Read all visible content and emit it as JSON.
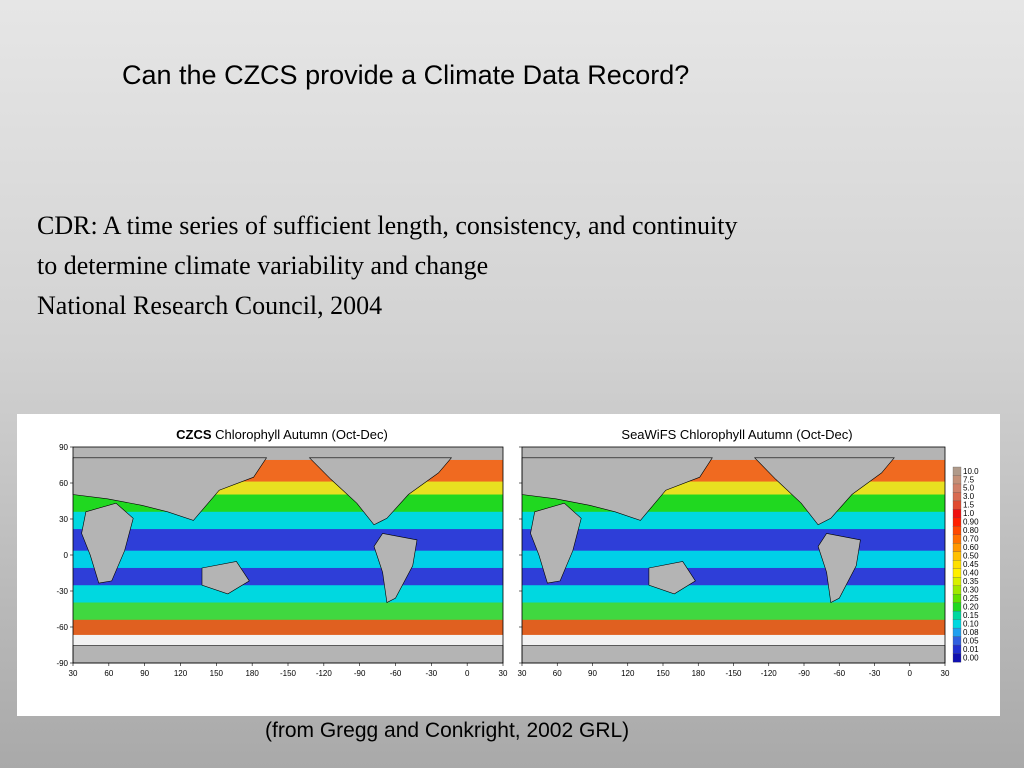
{
  "slide": {
    "title": "Can the CZCS provide a Climate Data Record?",
    "definition_lines": [
      "CDR:  A time series of sufficient length, consistency, and continuity",
      "to determine climate variability and change",
      "National Research Council, 2004"
    ],
    "caption": "(from Gregg and Conkright, 2002 GRL)"
  },
  "figure": {
    "left_map": {
      "title_bold": "CZCS",
      "title_rest": " Chlorophyll Autumn (Oct-Dec)"
    },
    "right_map": {
      "title": "SeaWiFS Chlorophyll Autumn (Oct-Dec)"
    },
    "lat_ticks": [
      "90",
      "60",
      "30",
      "0",
      "-30",
      "-60",
      "-90"
    ],
    "lon_ticks": [
      "30",
      "60",
      "90",
      "120",
      "150",
      "180",
      "-150",
      "-120",
      "-90",
      "-60",
      "-30",
      "0",
      "30"
    ],
    "colorbar_labels": [
      "10.0",
      "7.5",
      "5.0",
      "3.0",
      "1.5",
      "1.0",
      "0.90",
      "0.80",
      "0.70",
      "0.60",
      "0.50",
      "0.45",
      "0.40",
      "0.35",
      "0.30",
      "0.25",
      "0.20",
      "0.15",
      "0.10",
      "0.08",
      "0.05",
      "0.01",
      "0.00"
    ],
    "colorbar_colors": [
      "#b09a8a",
      "#c49078",
      "#d08068",
      "#d86a50",
      "#e04a30",
      "#f01010",
      "#ff2000",
      "#ff4800",
      "#ff7000",
      "#ff9800",
      "#ffc000",
      "#ffe000",
      "#fff000",
      "#d8f000",
      "#a0e800",
      "#60e000",
      "#20d820",
      "#00d8a0",
      "#00d8e0",
      "#20a0f0",
      "#3060e0",
      "#2030d0",
      "#1010b0"
    ],
    "land_color": "#b4b4b4",
    "ice_color": "#f2f2f2"
  }
}
